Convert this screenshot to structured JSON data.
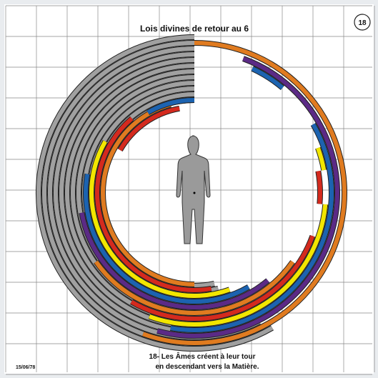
{
  "header": {
    "title": "Lois divines de retour au 6",
    "badge": "18"
  },
  "caption": {
    "lines": [
      "18- Les Âmes créent à leur tour",
      "en descendant vers la Matière."
    ]
  },
  "date": "15/06/78"
}
